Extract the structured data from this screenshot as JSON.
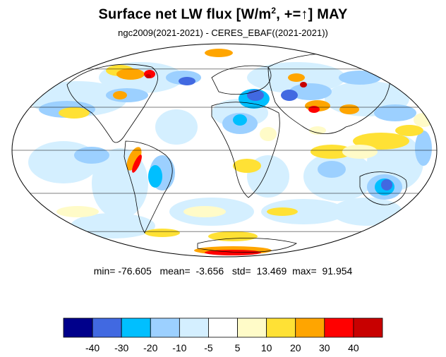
{
  "title": {
    "prefix": "Surface net LW flux [W/m",
    "superscript": "2",
    "suffix": ", +=↑]  MAY"
  },
  "subtitle": "ngc2009(2021-2021) - CERES_EBAF((2021-2021))",
  "stats": {
    "min_label": "min=",
    "min": "-76.605",
    "mean_label": "mean=",
    "mean": "-3.656",
    "std_label": "std=",
    "std": "13.469",
    "max_label": "max=",
    "max": "91.954"
  },
  "colorbar": {
    "colors": [
      "#00008b",
      "#4169e1",
      "#00bfff",
      "#9cd0ff",
      "#d4efff",
      "#ffffff",
      "#fffbc8",
      "#ffe135",
      "#ffa500",
      "#ff0000",
      "#c80000"
    ],
    "tick_labels": [
      "-40",
      "-30",
      "-20",
      "-10",
      "-5",
      "5",
      "10",
      "20",
      "30",
      "40"
    ]
  },
  "map": {
    "projection": "mollweide",
    "palette_index_for_land_outline": "black"
  }
}
